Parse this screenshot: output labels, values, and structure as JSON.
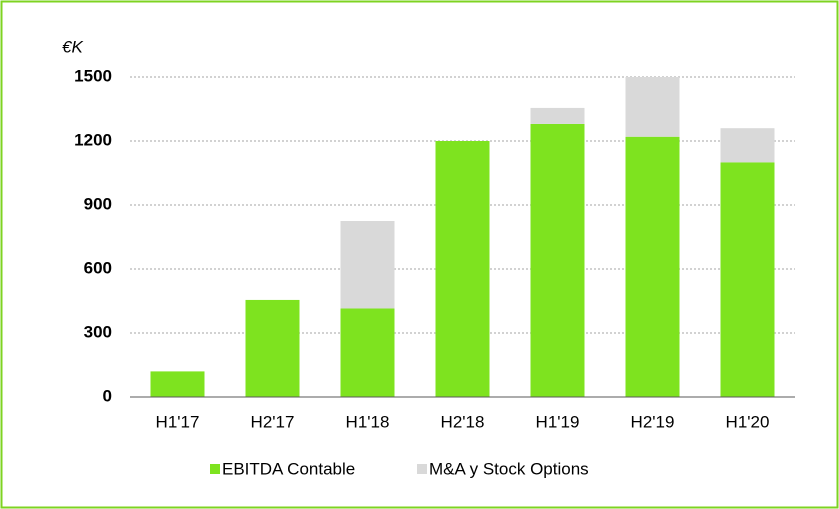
{
  "chart_data": {
    "type": "stacked_bar",
    "y_label": "€K",
    "categories": [
      "H1'17",
      "H2'17",
      "H1'18",
      "H2'18",
      "H1'19",
      "H2'19",
      "H1'20"
    ],
    "series": [
      {
        "name": "EBITDA Contable",
        "color": "#7ee31f",
        "values": [
          120,
          455,
          415,
          1200,
          1280,
          1220,
          1100
        ]
      },
      {
        "name": "M&A y Stock Options",
        "color": "#d9d9d9",
        "values": [
          0,
          0,
          410,
          0,
          75,
          280,
          160
        ]
      }
    ],
    "ylim": [
      0,
      1500
    ],
    "yticks": [
      0,
      300,
      600,
      900,
      1200,
      1500
    ],
    "grid": true
  }
}
